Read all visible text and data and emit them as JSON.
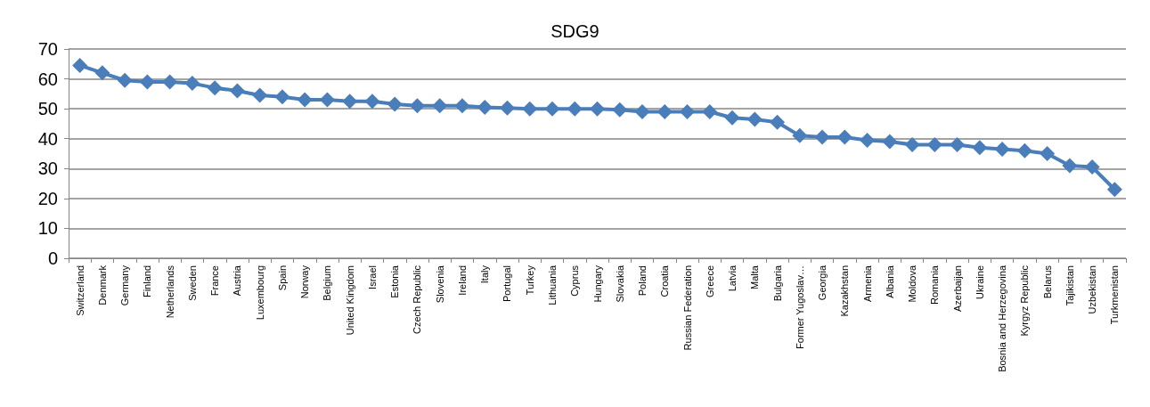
{
  "chart_data": {
    "type": "line",
    "title": "SDG9",
    "categories": [
      "Switzerland",
      "Denmark",
      "Germany",
      "Finland",
      "Netherlands",
      "Sweden",
      "France",
      "Austria",
      "Luxembourg",
      "Spain",
      "Norway",
      "Belgium",
      "United Kingdom",
      "Israel",
      "Estonia",
      "Czech Republic",
      "Slovenia",
      "Ireland",
      "Italy",
      "Portugal",
      "Turkey",
      "Lithuania",
      "Cyprus",
      "Hungary",
      "Slovakia",
      "Poland",
      "Croatia",
      "Russian Federation",
      "Greece",
      "Latvia",
      "Malta",
      "Bulgaria",
      "Former Yugoslav…",
      "Georgia",
      "Kazakhstan",
      "Armenia",
      "Albania",
      "Moldova",
      "Romania",
      "Azerbaijan",
      "Ukraine",
      "Bosnia and Herzegovina",
      "Kyrgyz Republic",
      "Belarus",
      "Tajikistan",
      "Uzbekistan",
      "Turkmenistan"
    ],
    "series": [
      {
        "color": "#4a7ebb",
        "values": [
          64.5,
          62,
          59.5,
          59,
          59,
          58.5,
          57,
          56,
          54.5,
          54,
          53,
          53,
          52.5,
          52.5,
          51.5,
          51,
          51,
          51,
          50.5,
          50.3,
          50,
          50,
          50,
          50,
          49.7,
          49,
          49,
          49,
          49,
          47,
          46.5,
          45.5,
          41,
          40.5,
          40.5,
          39.5,
          39,
          38,
          38,
          38,
          37,
          36.5,
          36,
          35,
          31,
          30.5,
          23
        ]
      }
    ],
    "ylim": [
      0,
      70
    ],
    "yticks": [
      0,
      10,
      20,
      30,
      40,
      50,
      60,
      70
    ],
    "grid": "y",
    "marker": "diamond",
    "line_style": "solid"
  }
}
